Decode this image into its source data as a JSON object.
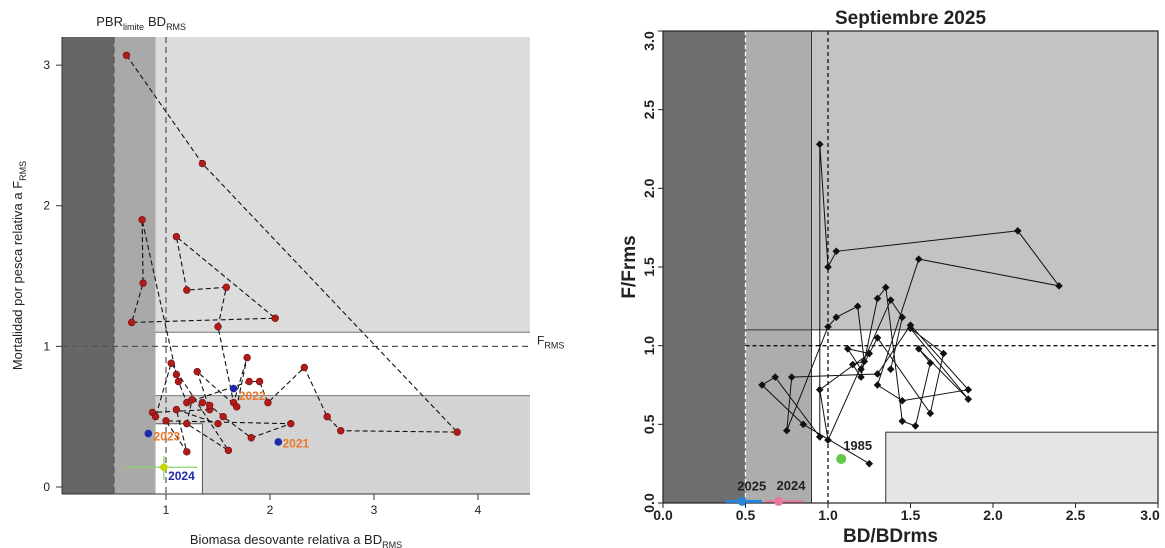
{
  "chart_data": [
    {
      "type": "scatter",
      "xlabel_main": "Biomasa desovante relativa a BD",
      "xlabel_sub": "RMS",
      "ylabel_main": "Mortalidad por pesca relativa a F",
      "ylabel_sub": "RMS",
      "top_labels": [
        {
          "main": "PBR",
          "sub": "limite",
          "x": 0.5
        },
        {
          "main": "BD",
          "sub": "RMS",
          "x": 1.0
        }
      ],
      "frms_label": {
        "main": "F",
        "sub": "RMS"
      },
      "xticks": [
        "1",
        "2",
        "3",
        "4"
      ],
      "yticks": [
        "0",
        "1",
        "2",
        "3"
      ],
      "xlim": [
        0,
        4.5
      ],
      "ylim": [
        -0.05,
        3.2
      ],
      "zones": [
        {
          "x0": 0,
          "x1": 0.5,
          "y0": -0.05,
          "y1": 3.2,
          "color": "#666666"
        },
        {
          "x0": 0.5,
          "x1": 0.9,
          "y0": -0.05,
          "y1": 3.2,
          "color": "#a9a9a9"
        },
        {
          "x0": 0.9,
          "x1": 4.5,
          "y0": 1.1,
          "y1": 3.2,
          "color": "#dcdcdc"
        },
        {
          "x0": 0.9,
          "x1": 4.5,
          "y0": 0.65,
          "y1": 1.1,
          "color": "#ffffff"
        },
        {
          "x0": 0.9,
          "x1": 4.5,
          "y0": -0.05,
          "y1": 0.65,
          "color": "#d3d3d3"
        },
        {
          "x0": 0.9,
          "x1": 1.35,
          "y0": -0.05,
          "y1": 0.45,
          "color": "#ffffff"
        }
      ],
      "vlines": [
        0.5,
        1.0
      ],
      "hline": 1.0,
      "points": [
        [
          0.62,
          3.07
        ],
        [
          1.35,
          2.3
        ],
        [
          0.77,
          1.9
        ],
        [
          0.78,
          1.45
        ],
        [
          0.67,
          1.17
        ],
        [
          2.05,
          1.2
        ],
        [
          1.1,
          1.78
        ],
        [
          1.2,
          1.4
        ],
        [
          1.58,
          1.42
        ],
        [
          1.5,
          1.14
        ],
        [
          1.65,
          0.6
        ],
        [
          1.78,
          0.92
        ],
        [
          1.68,
          0.57
        ],
        [
          1.3,
          0.82
        ],
        [
          1.42,
          0.55
        ],
        [
          1.1,
          0.8
        ],
        [
          1.12,
          0.75
        ],
        [
          1.2,
          0.6
        ],
        [
          1.8,
          0.75
        ],
        [
          1.9,
          0.75
        ],
        [
          1.98,
          0.6
        ],
        [
          2.33,
          0.85
        ],
        [
          2.55,
          0.5
        ],
        [
          2.68,
          0.4
        ],
        [
          3.8,
          0.39
        ],
        [
          0.87,
          0.53
        ],
        [
          0.9,
          0.5
        ],
        [
          1.05,
          0.88
        ],
        [
          1.6,
          0.26
        ],
        [
          1.2,
          0.45
        ],
        [
          1.25,
          0.62
        ],
        [
          1.35,
          0.6
        ],
        [
          1.42,
          0.58
        ],
        [
          1.55,
          0.5
        ],
        [
          1.82,
          0.35
        ],
        [
          2.2,
          0.45
        ],
        [
          1.0,
          0.47
        ],
        [
          1.2,
          0.25
        ],
        [
          1.1,
          0.55
        ],
        [
          1.5,
          0.45
        ]
      ],
      "path_order": [
        0,
        1,
        24,
        23,
        22,
        21,
        20,
        19,
        18,
        17,
        16,
        15,
        2,
        3,
        4,
        5,
        6,
        7,
        8,
        9,
        10,
        11,
        12,
        13,
        14,
        25,
        26,
        27,
        28,
        29,
        30,
        31,
        32,
        33,
        34,
        35,
        36,
        37,
        38,
        39
      ],
      "highlight_points": [
        {
          "x": 2.08,
          "y": 0.32,
          "color": "#1f2aa8"
        },
        {
          "x": 1.65,
          "y": 0.7,
          "color": "#1f2aa8"
        },
        {
          "x": 0.83,
          "y": 0.38,
          "color": "#1f2aa8"
        },
        {
          "x": 0.98,
          "y": 0.14,
          "color": "#c8d400"
        }
      ],
      "year_labels": [
        {
          "label": "2021",
          "x": 2.12,
          "y": 0.28,
          "color": "#e8782a"
        },
        {
          "label": "2022",
          "x": 1.7,
          "y": 0.62,
          "color": "#e8782a"
        },
        {
          "label": "2023",
          "x": 0.88,
          "y": 0.33,
          "color": "#e8782a"
        },
        {
          "label": "2024",
          "x": 1.02,
          "y": 0.05,
          "color": "#1f2aa8"
        }
      ],
      "point_color": "#b31b1b"
    },
    {
      "type": "line",
      "title": "Septiembre 2025",
      "xlabel": "BD/BDrms",
      "ylabel": "F/Frms",
      "xticks": [
        "0.0",
        "0.5",
        "1.0",
        "1.5",
        "2.0",
        "2.5",
        "3.0"
      ],
      "yticks": [
        "0.0",
        "0.5",
        "1.0",
        "1.5",
        "2.0",
        "2.5",
        "3.0"
      ],
      "xlim": [
        0,
        3
      ],
      "ylim": [
        0,
        3
      ],
      "zones": [
        {
          "x0": 0,
          "x1": 0.5,
          "y0": 0,
          "y1": 3,
          "color": "#6f6f6f"
        },
        {
          "x0": 0.5,
          "x1": 0.9,
          "y0": 0,
          "y1": 3,
          "color": "#adadad"
        },
        {
          "x0": 0.9,
          "x1": 3,
          "y0": 1.1,
          "y1": 3,
          "color": "#c3c3c3"
        },
        {
          "x0": 0.9,
          "x1": 3,
          "y0": 0,
          "y1": 1.1,
          "color": "#ffffff"
        },
        {
          "x0": 1.35,
          "x1": 3,
          "y0": 0,
          "y1": 0.45,
          "color": "#e6e6e6"
        }
      ],
      "vlines_dashed": [
        0.5,
        1.0
      ],
      "vline_solid": 0.9,
      "hline_dashed": 1.0,
      "hline_solid": 1.1,
      "series": [
        [
          1.25,
          0.25
        ],
        [
          0.85,
          0.5
        ],
        [
          0.6,
          0.75
        ],
        [
          0.68,
          0.8
        ],
        [
          0.95,
          0.42
        ],
        [
          0.95,
          2.28
        ],
        [
          1.0,
          1.5
        ],
        [
          1.05,
          1.6
        ],
        [
          2.15,
          1.73
        ],
        [
          2.4,
          1.38
        ],
        [
          1.55,
          1.55
        ],
        [
          1.3,
          0.75
        ],
        [
          1.45,
          0.65
        ],
        [
          1.85,
          0.72
        ],
        [
          1.5,
          1.13
        ],
        [
          1.3,
          0.82
        ],
        [
          0.78,
          0.8
        ],
        [
          0.75,
          0.46
        ],
        [
          1.0,
          1.12
        ],
        [
          1.05,
          1.18
        ],
        [
          1.18,
          1.25
        ],
        [
          1.22,
          0.9
        ],
        [
          1.15,
          0.88
        ],
        [
          1.2,
          0.8
        ],
        [
          1.3,
          1.3
        ],
        [
          1.35,
          1.37
        ],
        [
          1.45,
          0.52
        ],
        [
          1.53,
          0.49
        ],
        [
          1.62,
          0.89
        ],
        [
          1.55,
          0.98
        ],
        [
          1.85,
          0.66
        ],
        [
          1.5,
          1.11
        ],
        [
          1.7,
          0.95
        ],
        [
          1.62,
          0.57
        ],
        [
          1.3,
          1.05
        ],
        [
          1.2,
          0.85
        ],
        [
          1.12,
          0.98
        ],
        [
          1.25,
          0.95
        ],
        [
          0.95,
          0.72
        ],
        [
          1.0,
          0.4
        ],
        [
          1.38,
          1.29
        ],
        [
          1.45,
          1.18
        ],
        [
          1.38,
          0.85
        ]
      ],
      "point_1985": {
        "label": "1985",
        "x": 1.08,
        "y": 0.28,
        "color": "#63c74d"
      },
      "point_2024": {
        "label": "2024",
        "x": 0.7,
        "y": 0.01,
        "color": "#e8779a"
      },
      "point_2025": {
        "label": "2025",
        "x": 0.48,
        "y": 0.01,
        "color": "#2a86d6"
      }
    }
  ]
}
